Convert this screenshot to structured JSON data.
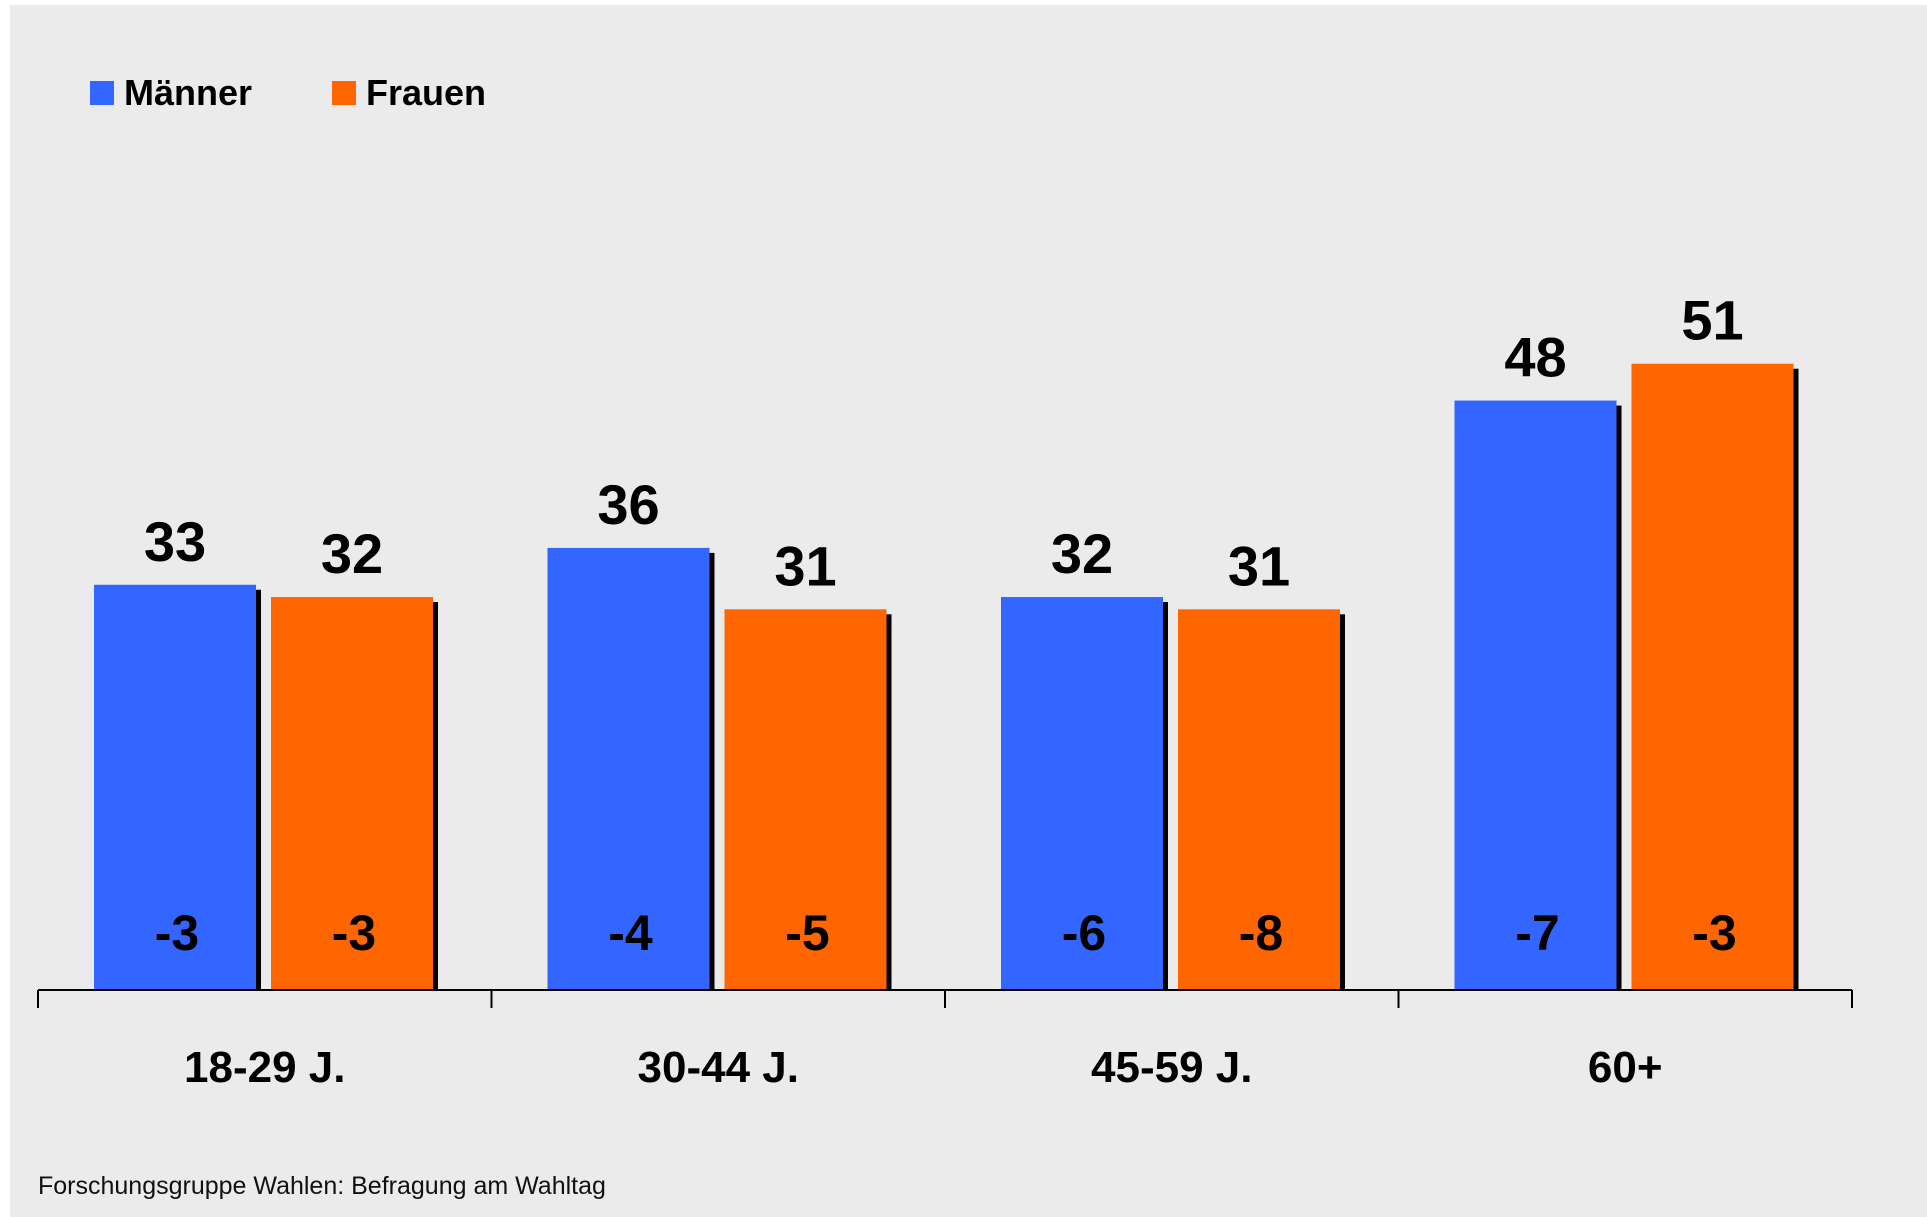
{
  "chart_data": {
    "type": "bar",
    "categories": [
      "18-29 J.",
      "30-44 J.",
      "45-59 J.",
      "60+"
    ],
    "series": [
      {
        "name": "Männer",
        "color": "#3366ff",
        "values": [
          33,
          36,
          32,
          48
        ],
        "changes": [
          "-3",
          "-4",
          "-6",
          "-7"
        ]
      },
      {
        "name": "Frauen",
        "color": "#ff6600",
        "values": [
          32,
          31,
          31,
          51
        ],
        "changes": [
          "-3",
          "-5",
          "-8",
          "-3"
        ]
      }
    ],
    "ylim": [
      0,
      55
    ],
    "legend_position": "top-left",
    "grid": false,
    "background_color": "#ebebeb"
  },
  "source": "Forschungsgruppe Wahlen: Befragung am Wahltag"
}
